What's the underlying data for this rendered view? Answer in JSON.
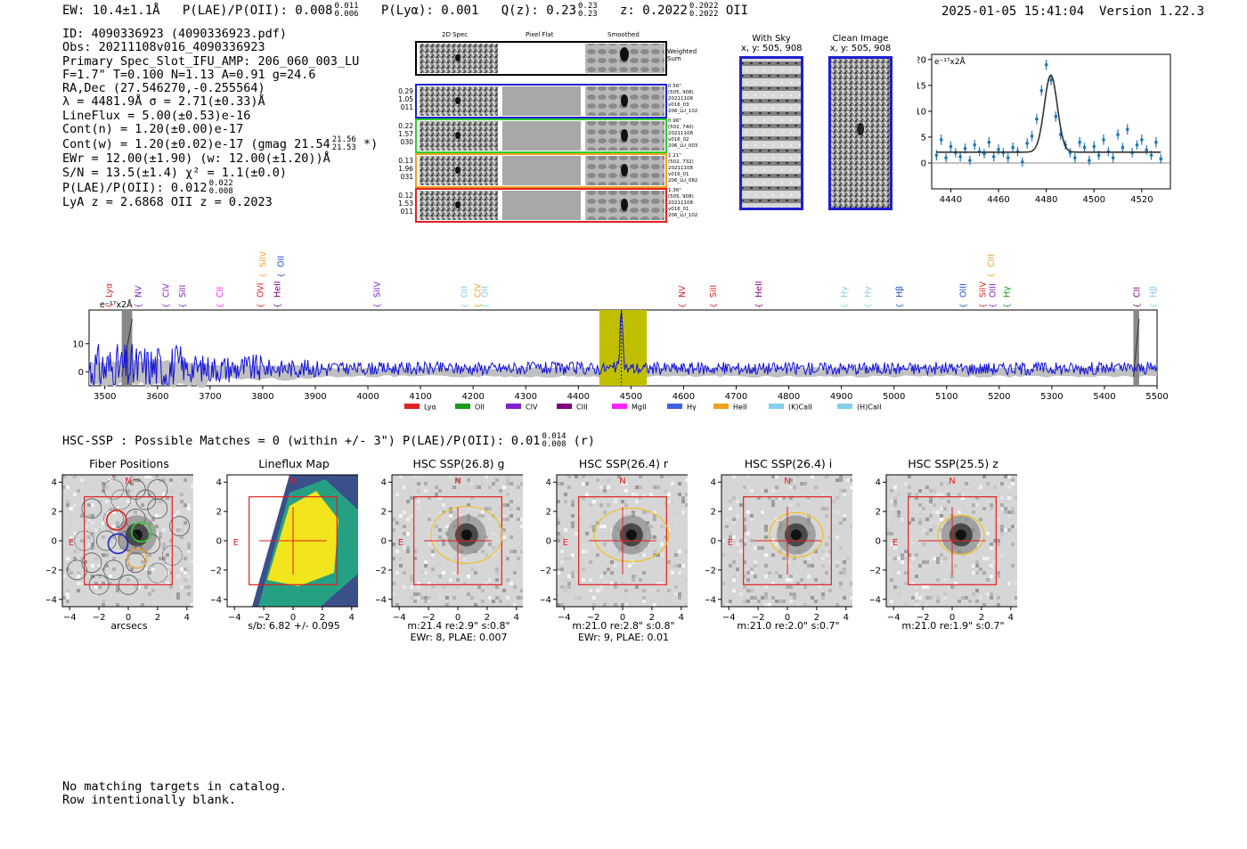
{
  "header": {
    "ew": "EW: 10.4±1.1Å",
    "plae_label": "P(LAE)/P(OII): 0.008",
    "plae_hi": "0.011",
    "plae_lo": "0.006",
    "plya": "P(Lyα): 0.001",
    "qz_label": "Q(z): 0.23",
    "qz_hi": "0.23",
    "qz_lo": "0.23",
    "z_label": "z: 0.2022",
    "z_hi": "0.2022",
    "z_lo": "0.2022",
    "z_type": "OII",
    "timestamp": "2025-01-05 15:41:04",
    "version": "Version 1.22.3"
  },
  "info": {
    "id": "ID: 4090336923 (4090336923.pdf)",
    "obs": "Obs: 20211108v016_4090336923",
    "primary": "Primary Spec_Slot_IFU_AMP: 206_060_003_LU",
    "f_line": "F=1.7\"  T=0.100  N=1.13  A=0.91  g=24.6",
    "radec": "RA,Dec (27.546270,-0.255564)",
    "lambda": "λ = 4481.9Å   σ = 2.71(±0.33)Å",
    "lineflux": "LineFlux = 5.00(±0.53)e-16",
    "contn": "Cont(n) = 1.20(±0.00)e-17",
    "contw": "Cont(w) = 1.20(±0.02)e-17 (gmag 21.54",
    "contw_hi": "21.56",
    "contw_lo": "21.53",
    "contw_end": "*)",
    "ewr": "EWr = 12.00(±1.90) (w: 12.00(±1.20))Å",
    "sn": "S/N = 13.5(±1.4)  χ² = 1.1(±0.0)",
    "plae": "P(LAE)/P(OII): 0.012",
    "plae_hi": "0.022",
    "plae_lo": "0.008",
    "lya": "LyA z = 2.6868  OII z = 0.2023"
  },
  "cutouts": {
    "col_headers": [
      "2D Spec",
      "Pixel Flat",
      "Smoothed"
    ],
    "weighted_sum": "Weighted Sum",
    "rows": [
      {
        "stats": [
          "0.29",
          "1.05",
          "011"
        ],
        "meta": [
          "0.56\"",
          "(505, 908)",
          "20211108",
          "v016_03",
          "206_LU_102"
        ],
        "color": "#1f1fd0"
      },
      {
        "stats": [
          "0.22",
          "1.57",
          "030"
        ],
        "meta": [
          "0.96\"",
          "(502, 740)",
          "20211108",
          "v016_02",
          "206_LU_003"
        ],
        "color": "#2bd02b"
      },
      {
        "stats": [
          "0.13",
          "1.96",
          "031"
        ],
        "meta": [
          "1.21\"",
          "(502, 732)",
          "20211108",
          "v016_01",
          "206_LU_082"
        ],
        "color": "#f0a020"
      },
      {
        "stats": [
          "0.12",
          "1.53",
          "011"
        ],
        "meta": [
          "1.36\"",
          "(505, 908)",
          "20211108",
          "v016_01",
          "206_LU_102"
        ],
        "color": "#e02020"
      }
    ]
  },
  "sky": {
    "with_sky_title": "With Sky",
    "with_sky_coord": "x, y: 505, 908",
    "clean_title": "Clean Image",
    "clean_coord": "x, y: 505, 908"
  },
  "fit_chart": {
    "type": "scatter",
    "ylabel": "e⁻¹⁷x2Å",
    "x_ticks": [
      4440,
      4460,
      4480,
      4500,
      4520
    ],
    "y_ticks": [
      0,
      5,
      10,
      15,
      20
    ],
    "xlim": [
      4432,
      4532
    ],
    "ylim": [
      -5,
      21
    ],
    "center": 4481.9,
    "sigma": 2.71,
    "amplitude": 14.9,
    "continuum": 2.1,
    "points_x": [
      4434,
      4436,
      4438,
      4440,
      4442,
      4444,
      4446,
      4448,
      4450,
      4452,
      4454,
      4456,
      4458,
      4460,
      4462,
      4464,
      4466,
      4468,
      4470,
      4472,
      4474,
      4476,
      4478,
      4480,
      4482,
      4484,
      4486,
      4488,
      4490,
      4492,
      4494,
      4496,
      4498,
      4500,
      4502,
      4504,
      4506,
      4508,
      4510,
      4512,
      4514,
      4516,
      4518,
      4520,
      4522,
      4524,
      4526,
      4528
    ],
    "points_y": [
      1.5,
      4.5,
      1.0,
      3.2,
      2.0,
      1.2,
      2.8,
      0.5,
      3.5,
      2.2,
      1.8,
      4.0,
      1.2,
      2.6,
      2.0,
      1.0,
      3.0,
      2.2,
      0.2,
      3.8,
      5.2,
      8.5,
      14.0,
      19.0,
      16.0,
      9.0,
      5.5,
      3.5,
      2.0,
      1.0,
      4.0,
      3.0,
      0.5,
      3.2,
      1.5,
      4.5,
      2.2,
      1.0,
      5.5,
      3.0,
      6.5,
      2.0,
      3.5,
      4.5,
      2.5,
      1.5,
      4.0,
      0.8
    ],
    "points_err": [
      2.0,
      2.0,
      1.8,
      2.0,
      1.8,
      1.8,
      2.0,
      1.8,
      2.0,
      1.8,
      1.8,
      2.0,
      1.8,
      2.0,
      1.8,
      1.8,
      2.0,
      1.8,
      1.8,
      2.0,
      2.0,
      2.0,
      2.0,
      2.0,
      2.0,
      2.0,
      2.0,
      1.8,
      1.8,
      1.8,
      2.0,
      1.8,
      1.8,
      2.0,
      1.8,
      2.0,
      1.8,
      1.8,
      2.0,
      1.8,
      2.0,
      1.8,
      1.8,
      2.0,
      1.8,
      1.8,
      2.0,
      1.8
    ]
  },
  "spectrum": {
    "type": "line",
    "ylabel": "e⁻¹⁷x2Å",
    "xlim": [
      3470,
      5500
    ],
    "ylim": [
      -5,
      22
    ],
    "x_ticks": [
      3500,
      3600,
      3700,
      3800,
      3900,
      4000,
      4100,
      4200,
      4300,
      4400,
      4500,
      4600,
      4700,
      4800,
      4900,
      5000,
      5100,
      5200,
      5300,
      5400,
      5500
    ],
    "y_ticks": [
      0,
      10
    ],
    "highlight_range": [
      4440,
      4530
    ],
    "line_center": 4481.9,
    "masked_ranges": [
      [
        3532,
        3552
      ],
      [
        5455,
        5466
      ]
    ],
    "upper_labels": [
      {
        "text": "SiIV",
        "wave": 3800,
        "color": "#f0a020"
      },
      {
        "text": "OII",
        "wave": 3834,
        "color": "#1f50d0"
      },
      {
        "text": "CIII",
        "wave": 5184,
        "color": "#f0a020"
      }
    ],
    "lower_labels": [
      {
        "text": "Lyα",
        "wave": 3507,
        "color": "#e02020"
      },
      {
        "text": "NV",
        "wave": 3563,
        "color": "#8020d0"
      },
      {
        "text": "CIV",
        "wave": 3616,
        "color": "#8020d0"
      },
      {
        "text": "SiII",
        "wave": 3647,
        "color": "#8020d0"
      },
      {
        "text": "CII",
        "wave": 3718,
        "color": "#ff20ff"
      },
      {
        "text": "OVI",
        "wave": 3795,
        "color": "#e02020"
      },
      {
        "text": "HeII",
        "wave": 3827,
        "color": "#800080"
      },
      {
        "text": "SiIV",
        "wave": 4017,
        "color": "#8020d0"
      },
      {
        "text": "OII",
        "wave": 4183,
        "color": "#87ceeb"
      },
      {
        "text": "CIV",
        "wave": 4208,
        "color": "#f0a020"
      },
      {
        "text": "OII",
        "wave": 4222,
        "color": "#87ceeb"
      },
      {
        "text": "NV",
        "wave": 4597,
        "color": "#e02020"
      },
      {
        "text": "SiII",
        "wave": 4656,
        "color": "#e02020"
      },
      {
        "text": "HeII",
        "wave": 4742,
        "color": "#800080"
      },
      {
        "text": "Hγ",
        "wave": 4905,
        "color": "#87ceeb"
      },
      {
        "text": "Hγ",
        "wave": 4950,
        "color": "#87ceeb"
      },
      {
        "text": "Hβ",
        "wave": 5010,
        "color": "#1f50d0"
      },
      {
        "text": "OIII",
        "wave": 5131,
        "color": "#1f50d0"
      },
      {
        "text": "SiIV",
        "wave": 5168,
        "color": "#e02020"
      },
      {
        "text": "OIII",
        "wave": 5187,
        "color": "#8020d0"
      },
      {
        "text": "Hγ",
        "wave": 5214,
        "color": "#1a9a1a"
      },
      {
        "text": "CII",
        "wave": 5461,
        "color": "#800080"
      },
      {
        "text": "Hβ",
        "wave": 5492,
        "color": "#87ceeb"
      }
    ],
    "legend": [
      {
        "text": "Lyα",
        "color": "#e02020"
      },
      {
        "text": "OII",
        "color": "#1a9a1a"
      },
      {
        "text": "CIV",
        "color": "#8020d0"
      },
      {
        "text": "CIII",
        "color": "#800080"
      },
      {
        "text": "MgII",
        "color": "#ff20ff"
      },
      {
        "text": "Hγ",
        "color": "#4060e0"
      },
      {
        "text": "HeII",
        "color": "#f0a020"
      },
      {
        "text": "(K)CaII",
        "color": "#87ceeb"
      },
      {
        "text": "(H)CaII",
        "color": "#87ceeb"
      }
    ]
  },
  "hsc": {
    "summary": "HSC-SSP : Possible Matches = 0 (within +/- 3\")  P(LAE)/P(OII): 0.01",
    "summary_hi": "0.014",
    "summary_lo": "0.008",
    "summary_band": "(r)"
  },
  "panels": [
    {
      "title": "Fiber Positions",
      "caption1": "arcsecs",
      "caption2": ""
    },
    {
      "title": "Lineflux Map",
      "caption1": "s/b: 6.82 +/- 0.095",
      "caption2": ""
    },
    {
      "title": "HSC SSP(26.8) g",
      "caption1": "m:21.4  re:2.9\"  s:0.8\"",
      "caption2": "EWr: 8, PLAE: 0.007"
    },
    {
      "title": "HSC SSP(26.4) r",
      "caption1": "m:21.0  re:2.8\"  s:0.8\"",
      "caption2": "EWr: 9, PLAE: 0.01"
    },
    {
      "title": "HSC SSP(26.4) i",
      "caption1": "m:21.0  re:2.0\"  s:0.7\"",
      "caption2": ""
    },
    {
      "title": "HSC SSP(25.5) z",
      "caption1": "m:21.0  re:1.9\"  s:0.7\"",
      "caption2": ""
    }
  ],
  "panel_axis": {
    "ticks": [
      "−4",
      "−2",
      "0",
      "2",
      "4"
    ],
    "north": "N",
    "east": "E"
  },
  "footer": {
    "line1": "No matching targets in catalog.",
    "line2": "Row intentionally blank."
  }
}
